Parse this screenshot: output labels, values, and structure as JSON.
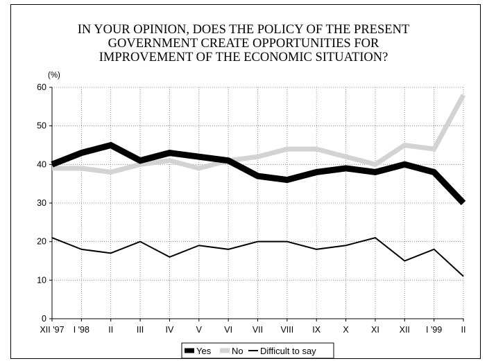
{
  "chart_data": {
    "type": "line",
    "title": "IN YOUR OPINION, DOES THE POLICY OF THE PRESENT GOVERNMENT CREATE OPPORTUNITIES FOR IMPROVEMENT OF THE ECONOMIC SITUATION?",
    "title_lines": [
      "IN YOUR OPINION, DOES THE POLICY OF THE PRESENT",
      "GOVERNMENT CREATE OPPORTUNITIES FOR",
      "IMPROVEMENT OF THE ECONOMIC SITUATION?"
    ],
    "y_unit": "(%)",
    "categories": [
      "XII '97",
      "I '98",
      "II",
      "III",
      "IV",
      "V",
      "VI",
      "VII",
      "VIII",
      "IX",
      "X",
      "XI",
      "XII",
      "I '99",
      "II"
    ],
    "ylim": [
      0,
      60
    ],
    "yticks": [
      0,
      10,
      20,
      30,
      40,
      50,
      60
    ],
    "grid": "dotted",
    "legend_position": "bottom",
    "series": [
      {
        "name": "Yes",
        "color": "#000000",
        "values": [
          40,
          43,
          45,
          41,
          43,
          42,
          41,
          37,
          36,
          38,
          39,
          38,
          40,
          38,
          30
        ]
      },
      {
        "name": "No",
        "color": "#d3d3d3",
        "values": [
          39,
          39,
          38,
          40,
          41,
          39,
          41,
          42,
          44,
          44,
          42,
          40,
          45,
          44,
          58
        ]
      },
      {
        "name": "Difficult to say",
        "color": "#000000",
        "values": [
          21,
          18,
          17,
          20,
          16,
          19,
          18,
          20,
          20,
          18,
          19,
          21,
          15,
          18,
          11
        ]
      }
    ]
  }
}
